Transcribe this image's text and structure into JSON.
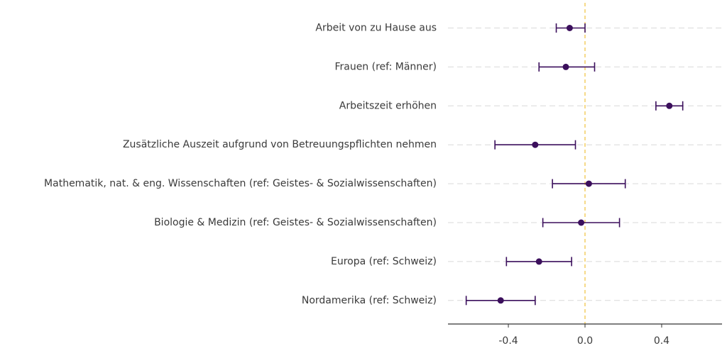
{
  "chart_data": {
    "type": "scatter",
    "title": "",
    "xlabel": "",
    "ylabel": "",
    "xlim": [
      -0.715,
      0.715
    ],
    "x_ticks": [
      -0.4,
      0.0,
      0.4
    ],
    "x_tick_labels": [
      "-0.4",
      "0.0",
      "0.4"
    ],
    "reference_line": 0.0,
    "grid": "horizontal dashed",
    "legend": "none",
    "colors": {
      "point": "#3b0f5c",
      "errorbar": "#3b0f5c",
      "reference_line": "#f0c64a",
      "grid": "#d9d9d9",
      "axis": "#333333",
      "text": "#3a3a3a"
    },
    "categories": [
      "Arbeit von zu Hause aus",
      "Frauen (ref: Männer)",
      "Arbeitszeit erhöhen",
      "Zusätzliche Auszeit aufgrund von Betreuungspflichten nehmen",
      "Mathematik, nat. & eng. Wissenschaften (ref: Geistes- & Sozialwissenschaften)",
      "Biologie & Medizin (ref: Geistes- & Sozialwissenschaften)",
      "Europa (ref: Schweiz)",
      "Nordamerika (ref: Schweiz)"
    ],
    "estimates": [
      -0.08,
      -0.1,
      0.44,
      -0.26,
      0.02,
      -0.02,
      -0.24,
      -0.44
    ],
    "lower": [
      -0.15,
      -0.24,
      0.37,
      -0.47,
      -0.17,
      -0.22,
      -0.41,
      -0.62
    ],
    "upper": [
      0.0,
      0.05,
      0.51,
      -0.05,
      0.21,
      0.18,
      -0.07,
      -0.26
    ]
  }
}
